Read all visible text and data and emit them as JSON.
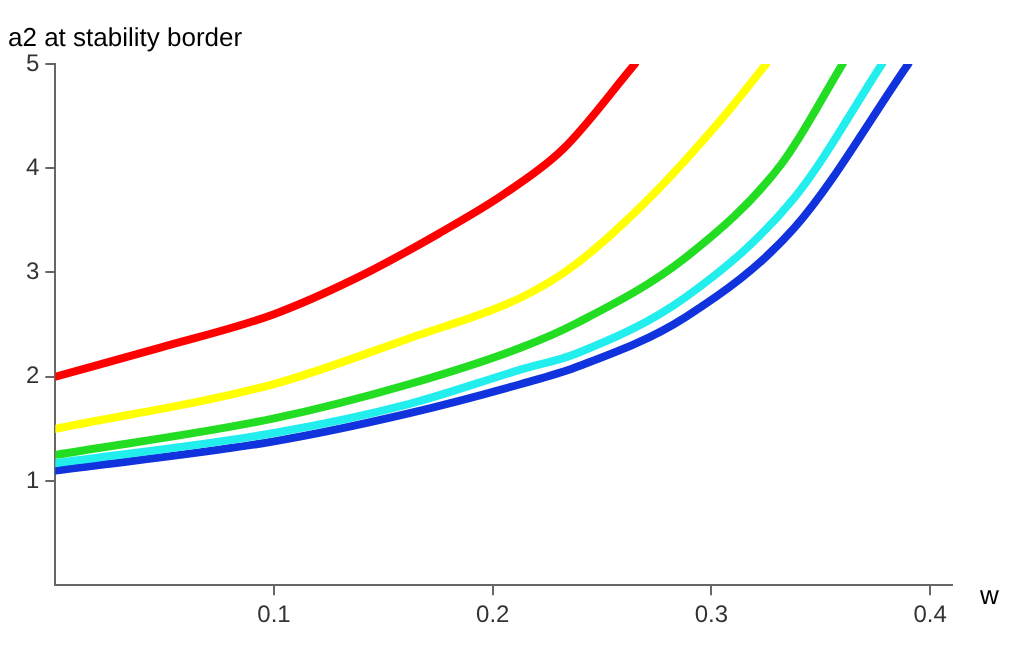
{
  "chart_data": {
    "type": "line",
    "ylabel": "a2 at stability border",
    "xlabel": "w",
    "xlim": [
      0,
      0.41
    ],
    "ylim": [
      0,
      5
    ],
    "xticks": [
      0.1,
      0.2,
      0.3,
      0.4
    ],
    "yticks": [
      1,
      2,
      3,
      4,
      5
    ],
    "grid": false,
    "legend": false,
    "marker": "none",
    "line_style": "solid",
    "series": [
      {
        "color": "#ff0000",
        "x": [
          0,
          0.048,
          0.1,
          0.138,
          0.175,
          0.205,
          0.232,
          0.265
        ],
        "values": [
          2.0,
          2.28,
          2.6,
          2.95,
          3.37,
          3.75,
          4.18,
          5.0
        ]
      },
      {
        "color": "#ffff00",
        "x": [
          0,
          0.1,
          0.162,
          0.213,
          0.238,
          0.272,
          0.305,
          0.325
        ],
        "values": [
          1.5,
          1.93,
          2.37,
          2.76,
          3.08,
          3.72,
          4.48,
          5.0
        ]
      },
      {
        "color": "#22dd22",
        "x": [
          0,
          0.1,
          0.162,
          0.213,
          0.238,
          0.288,
          0.332,
          0.36
        ],
        "values": [
          1.25,
          1.6,
          1.93,
          2.28,
          2.51,
          3.14,
          4.04,
          5.0
        ]
      },
      {
        "color": "#22eeee",
        "x": [
          0,
          0.1,
          0.162,
          0.213,
          0.238,
          0.288,
          0.338,
          0.378
        ],
        "values": [
          1.17,
          1.46,
          1.74,
          2.07,
          2.22,
          2.76,
          3.72,
          5.0
        ]
      },
      {
        "color": "#1133dd",
        "x": [
          0,
          0.1,
          0.162,
          0.213,
          0.238,
          0.288,
          0.338,
          0.39
        ],
        "values": [
          1.1,
          1.38,
          1.65,
          1.93,
          2.09,
          2.57,
          3.43,
          5.0
        ]
      }
    ]
  }
}
